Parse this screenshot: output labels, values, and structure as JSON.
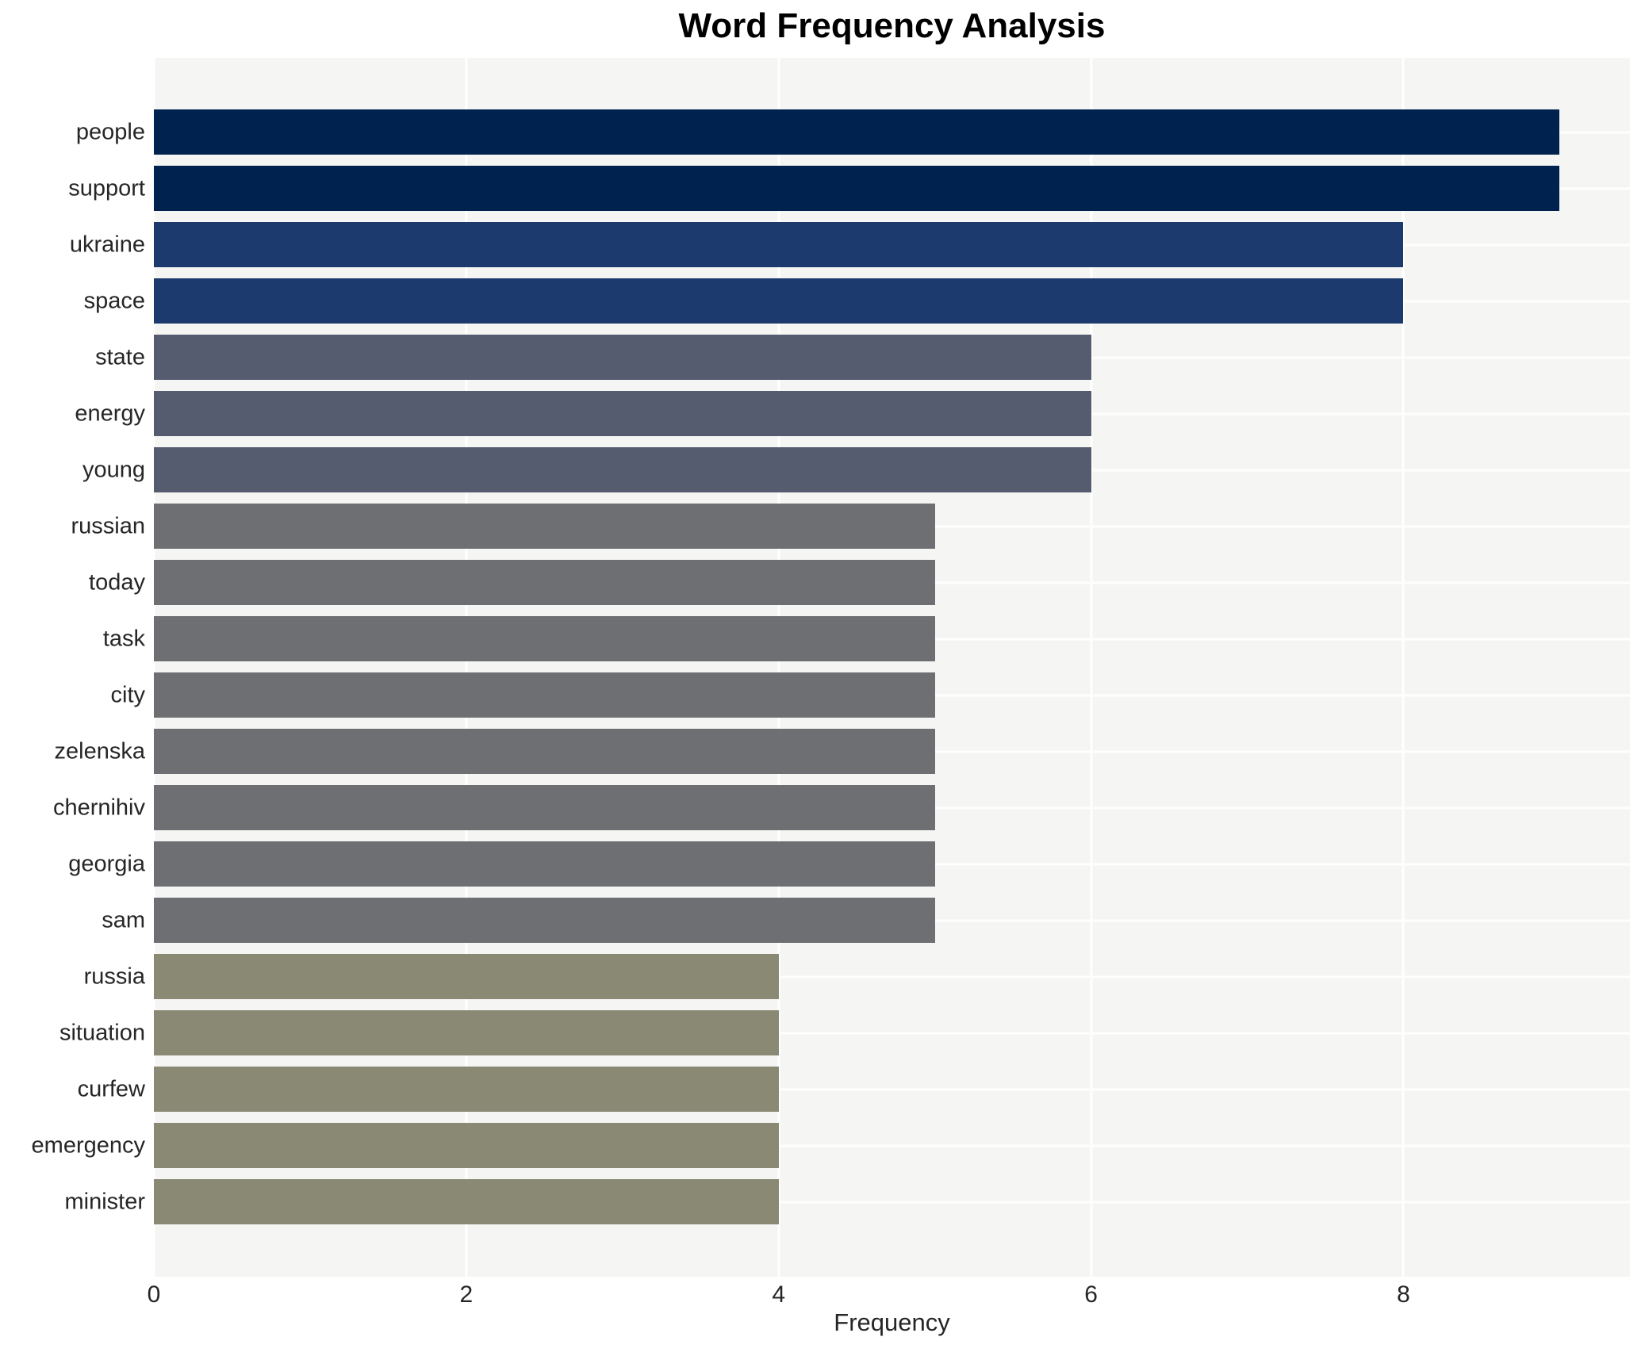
{
  "chart_data": {
    "type": "bar",
    "orientation": "horizontal",
    "title": "Word Frequency Analysis",
    "xlabel": "Frequency",
    "ylabel": "",
    "categories": [
      "people",
      "support",
      "ukraine",
      "space",
      "state",
      "energy",
      "young",
      "russian",
      "today",
      "task",
      "city",
      "zelenska",
      "chernihiv",
      "georgia",
      "sam",
      "russia",
      "situation",
      "curfew",
      "emergency",
      "minister"
    ],
    "values": [
      9,
      9,
      8,
      8,
      6,
      6,
      6,
      5,
      5,
      5,
      5,
      5,
      5,
      5,
      5,
      4,
      4,
      4,
      4,
      4
    ],
    "bar_colors": [
      "#00224E",
      "#00224E",
      "#1D3A6E",
      "#1D3A6E",
      "#555C70",
      "#555C70",
      "#555C70",
      "#6E6F72",
      "#6E6F72",
      "#6E6F72",
      "#6E6F72",
      "#6E6F72",
      "#6E6F72",
      "#6E6F72",
      "#6E6F72",
      "#8A8974",
      "#8A8974",
      "#8A8974",
      "#8A8974",
      "#8A8974"
    ],
    "xticks": [
      0,
      2,
      4,
      6,
      8
    ],
    "xlim": [
      0,
      9.45
    ],
    "grid": "white vertical gridlines at xticks and horizontal gridlines at bar centers",
    "legend_position": "none",
    "plot_bg_color": "#F5F5F3",
    "figure_bg_color": "#FFFFFF"
  }
}
